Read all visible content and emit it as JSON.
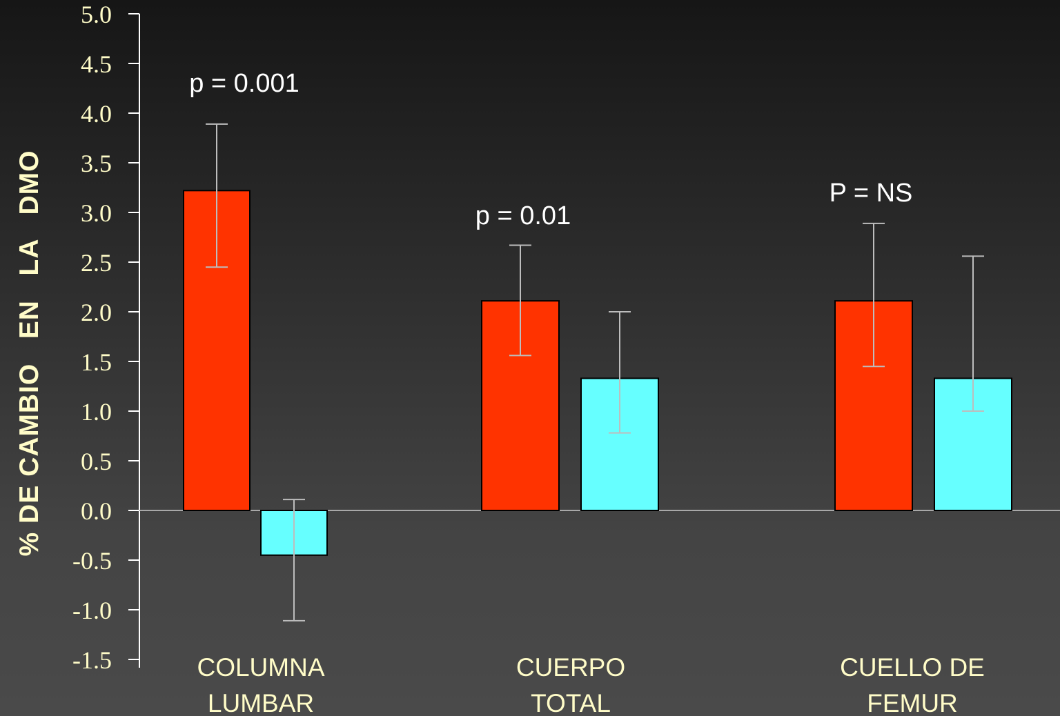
{
  "chart_data": {
    "type": "bar",
    "ylabel": "% DE CAMBIO   EN   LA   DMO",
    "xlabel": "",
    "ylim": [
      -1.5,
      5.0
    ],
    "yticks": [
      "5.0",
      "4.5",
      "4.0",
      "3.5",
      "3.0",
      "2.5",
      "2.0",
      "1.5",
      "1.0",
      "0.5",
      "0.0",
      "-0.5",
      "-1.0",
      "-1.5"
    ],
    "categories": [
      {
        "lines": [
          "COLUMNA",
          "LUMBAR"
        ]
      },
      {
        "lines": [
          "CUERPO",
          "TOTAL"
        ]
      },
      {
        "lines": [
          "CUELLO DE",
          "FEMUR"
        ]
      }
    ],
    "series": [
      {
        "color": "#ff3300",
        "values": [
          3.22,
          2.11,
          2.11
        ],
        "err_low": [
          2.45,
          1.56,
          1.45
        ],
        "err_high": [
          3.89,
          2.67,
          2.89
        ]
      },
      {
        "color": "#66ffff",
        "values": [
          -0.45,
          1.33,
          1.33
        ],
        "err_low": [
          -1.11,
          0.78,
          1.0
        ],
        "err_high": [
          0.11,
          2.0,
          2.56
        ]
      }
    ],
    "annotations": [
      {
        "text": "p = 0.001",
        "category": 0
      },
      {
        "text": "p = 0.01",
        "category": 1
      },
      {
        "text": "P = NS",
        "category": 2
      }
    ]
  }
}
